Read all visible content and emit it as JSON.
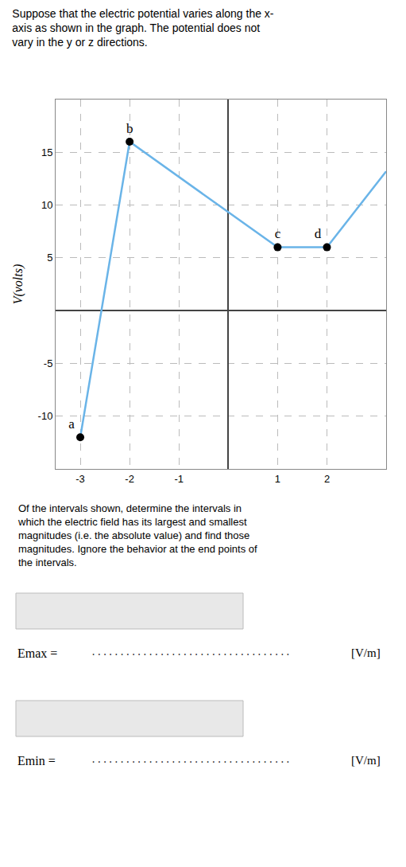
{
  "chart_data": {
    "type": "line",
    "title": "Suppose that the electric potential varies along the x-\naxis as shown in the graph. The potential does not\nvary in the y or z directions.",
    "ylabel": "V(volts)",
    "series": [
      {
        "type": "line",
        "color": "#6ab4e8",
        "x": [
          -3,
          -2,
          1,
          2,
          3.2
        ],
        "values": [
          -12,
          16,
          6,
          6,
          13.2
        ]
      },
      {
        "type": "scatter",
        "color": "black",
        "marker": "circle",
        "x": [
          -3,
          -2,
          1,
          2
        ],
        "values": [
          -12,
          16,
          6,
          6
        ],
        "labels": [
          "a",
          "b",
          "c",
          "d"
        ]
      }
    ],
    "xlim": [
      -3.5,
      3.2
    ],
    "ylim": [
      -15,
      20
    ],
    "xticks": [
      -3,
      -2,
      -1,
      {
        "value": 0,
        "label": null
      },
      1,
      2
    ],
    "yticks": [
      -10,
      -5,
      {
        "value": 0,
        "label": null
      },
      5,
      10,
      15
    ],
    "grid": true,
    "annotations": {
      "question": "Of the intervals shown, determine the intervals in\nwhich the electric field has its largest and smallest\nmagnitudes (i.e. the absolute value) and find those\nmagnitudes. Ignore the behavior at the end points of\nthe intervals.",
      "answers": [
        {
          "label": "Emax =",
          "blank": "...................................",
          "unit": "[V/m]"
        },
        {
          "label": "Emin =",
          "blank": "...................................",
          "unit": "[V/m]"
        }
      ]
    }
  }
}
